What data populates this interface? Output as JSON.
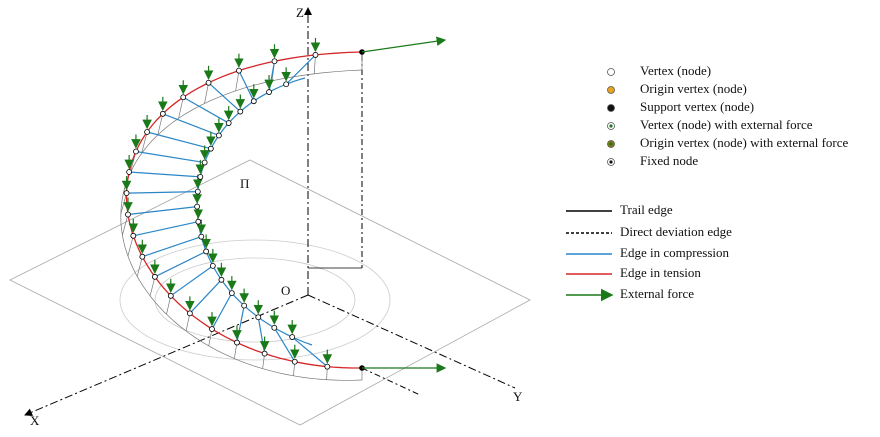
{
  "axes": {
    "z": "Z",
    "x": "X",
    "y": "Y",
    "origin": "O",
    "plane": "Π"
  },
  "legend": {
    "markers": [
      "Vertex (node)",
      "Origin vertex (node)",
      "Support vertex (node)",
      "Vertex (node) with external force",
      "Origin vertex (node) with external force",
      "Fixed node"
    ],
    "lines": [
      "Trail edge",
      "Direct deviation edge",
      "Edge in compression",
      "Edge in tension",
      "External force"
    ]
  }
}
